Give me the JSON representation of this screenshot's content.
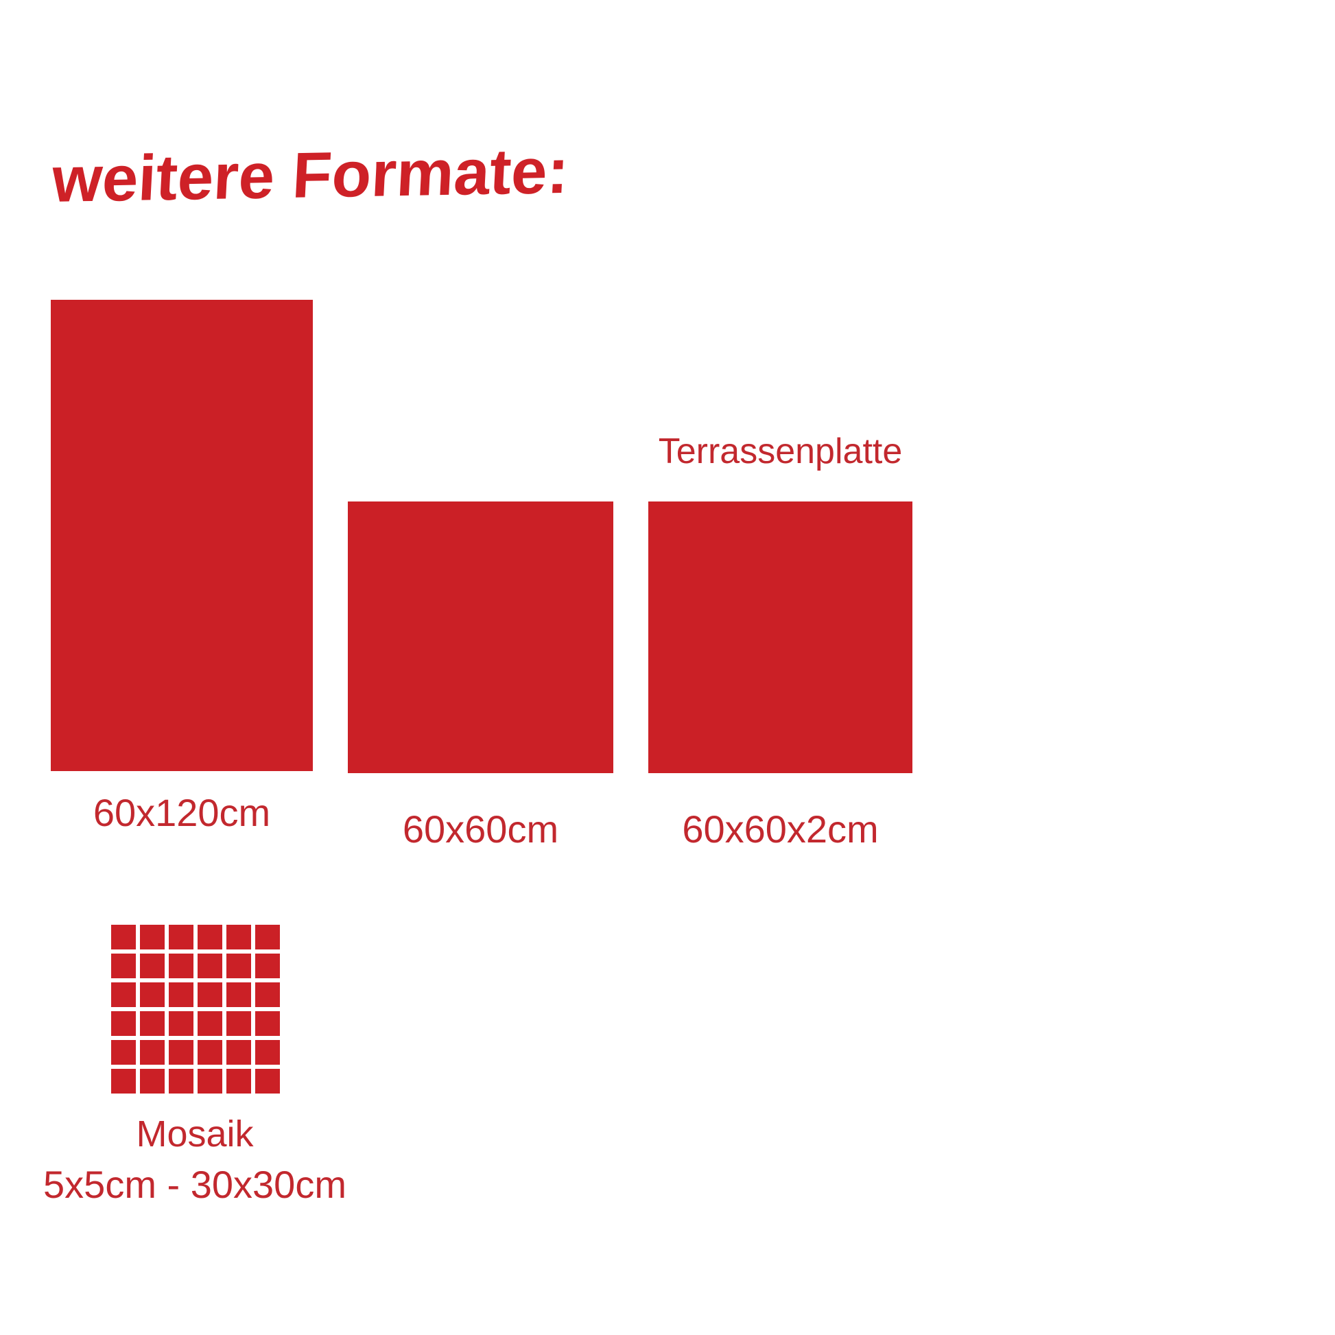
{
  "title": "weitere Formate:",
  "colors": {
    "tile_red": "#CB2026",
    "title_red": "#CE2127",
    "label_red": "#C2282E"
  },
  "formats": [
    {
      "label": "60x120cm"
    },
    {
      "label": "60x60cm"
    },
    {
      "label": "60x60x2cm",
      "annotation": "Terrassenplatte"
    },
    {
      "label": "Mosaik",
      "sublabel": "5x5cm - 30x30cm"
    }
  ],
  "mosaic": {
    "rows": 6,
    "cols": 6
  }
}
